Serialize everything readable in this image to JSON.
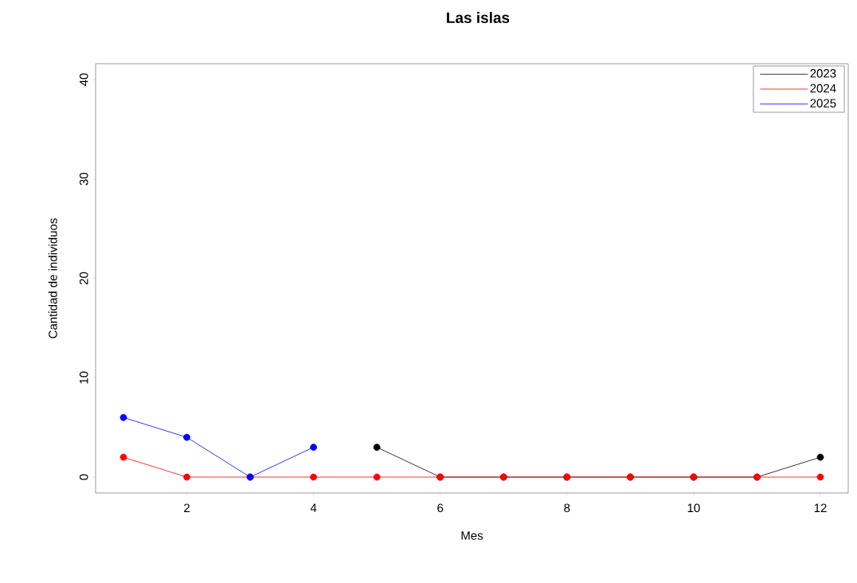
{
  "chart_data": {
    "type": "line",
    "title": "Las islas",
    "xlabel": "Mes",
    "ylabel": "Cantidad de individuos",
    "x": [
      1,
      2,
      3,
      4,
      5,
      6,
      7,
      8,
      9,
      10,
      11,
      12
    ],
    "series": [
      {
        "name": "2023",
        "color": "#000000",
        "values": [
          null,
          null,
          null,
          null,
          3,
          0,
          0,
          0,
          0,
          0,
          0,
          2
        ]
      },
      {
        "name": "2024",
        "color": "#ff0000",
        "values": [
          2,
          0,
          0,
          0,
          0,
          0,
          0,
          0,
          0,
          0,
          0,
          0
        ]
      },
      {
        "name": "2025",
        "color": "#0000ff",
        "values": [
          6,
          4,
          0,
          3,
          null,
          null,
          null,
          null,
          null,
          null,
          null,
          null
        ]
      }
    ],
    "xlim": [
      0.56,
      12.44
    ],
    "ylim": [
      -1.6,
      41.6
    ],
    "xticks": [
      2,
      4,
      6,
      8,
      10,
      12
    ],
    "yticks": [
      0,
      10,
      20,
      30,
      40
    ],
    "grid": false,
    "legend": "top right",
    "marker": "circle",
    "line_style": "solid"
  }
}
